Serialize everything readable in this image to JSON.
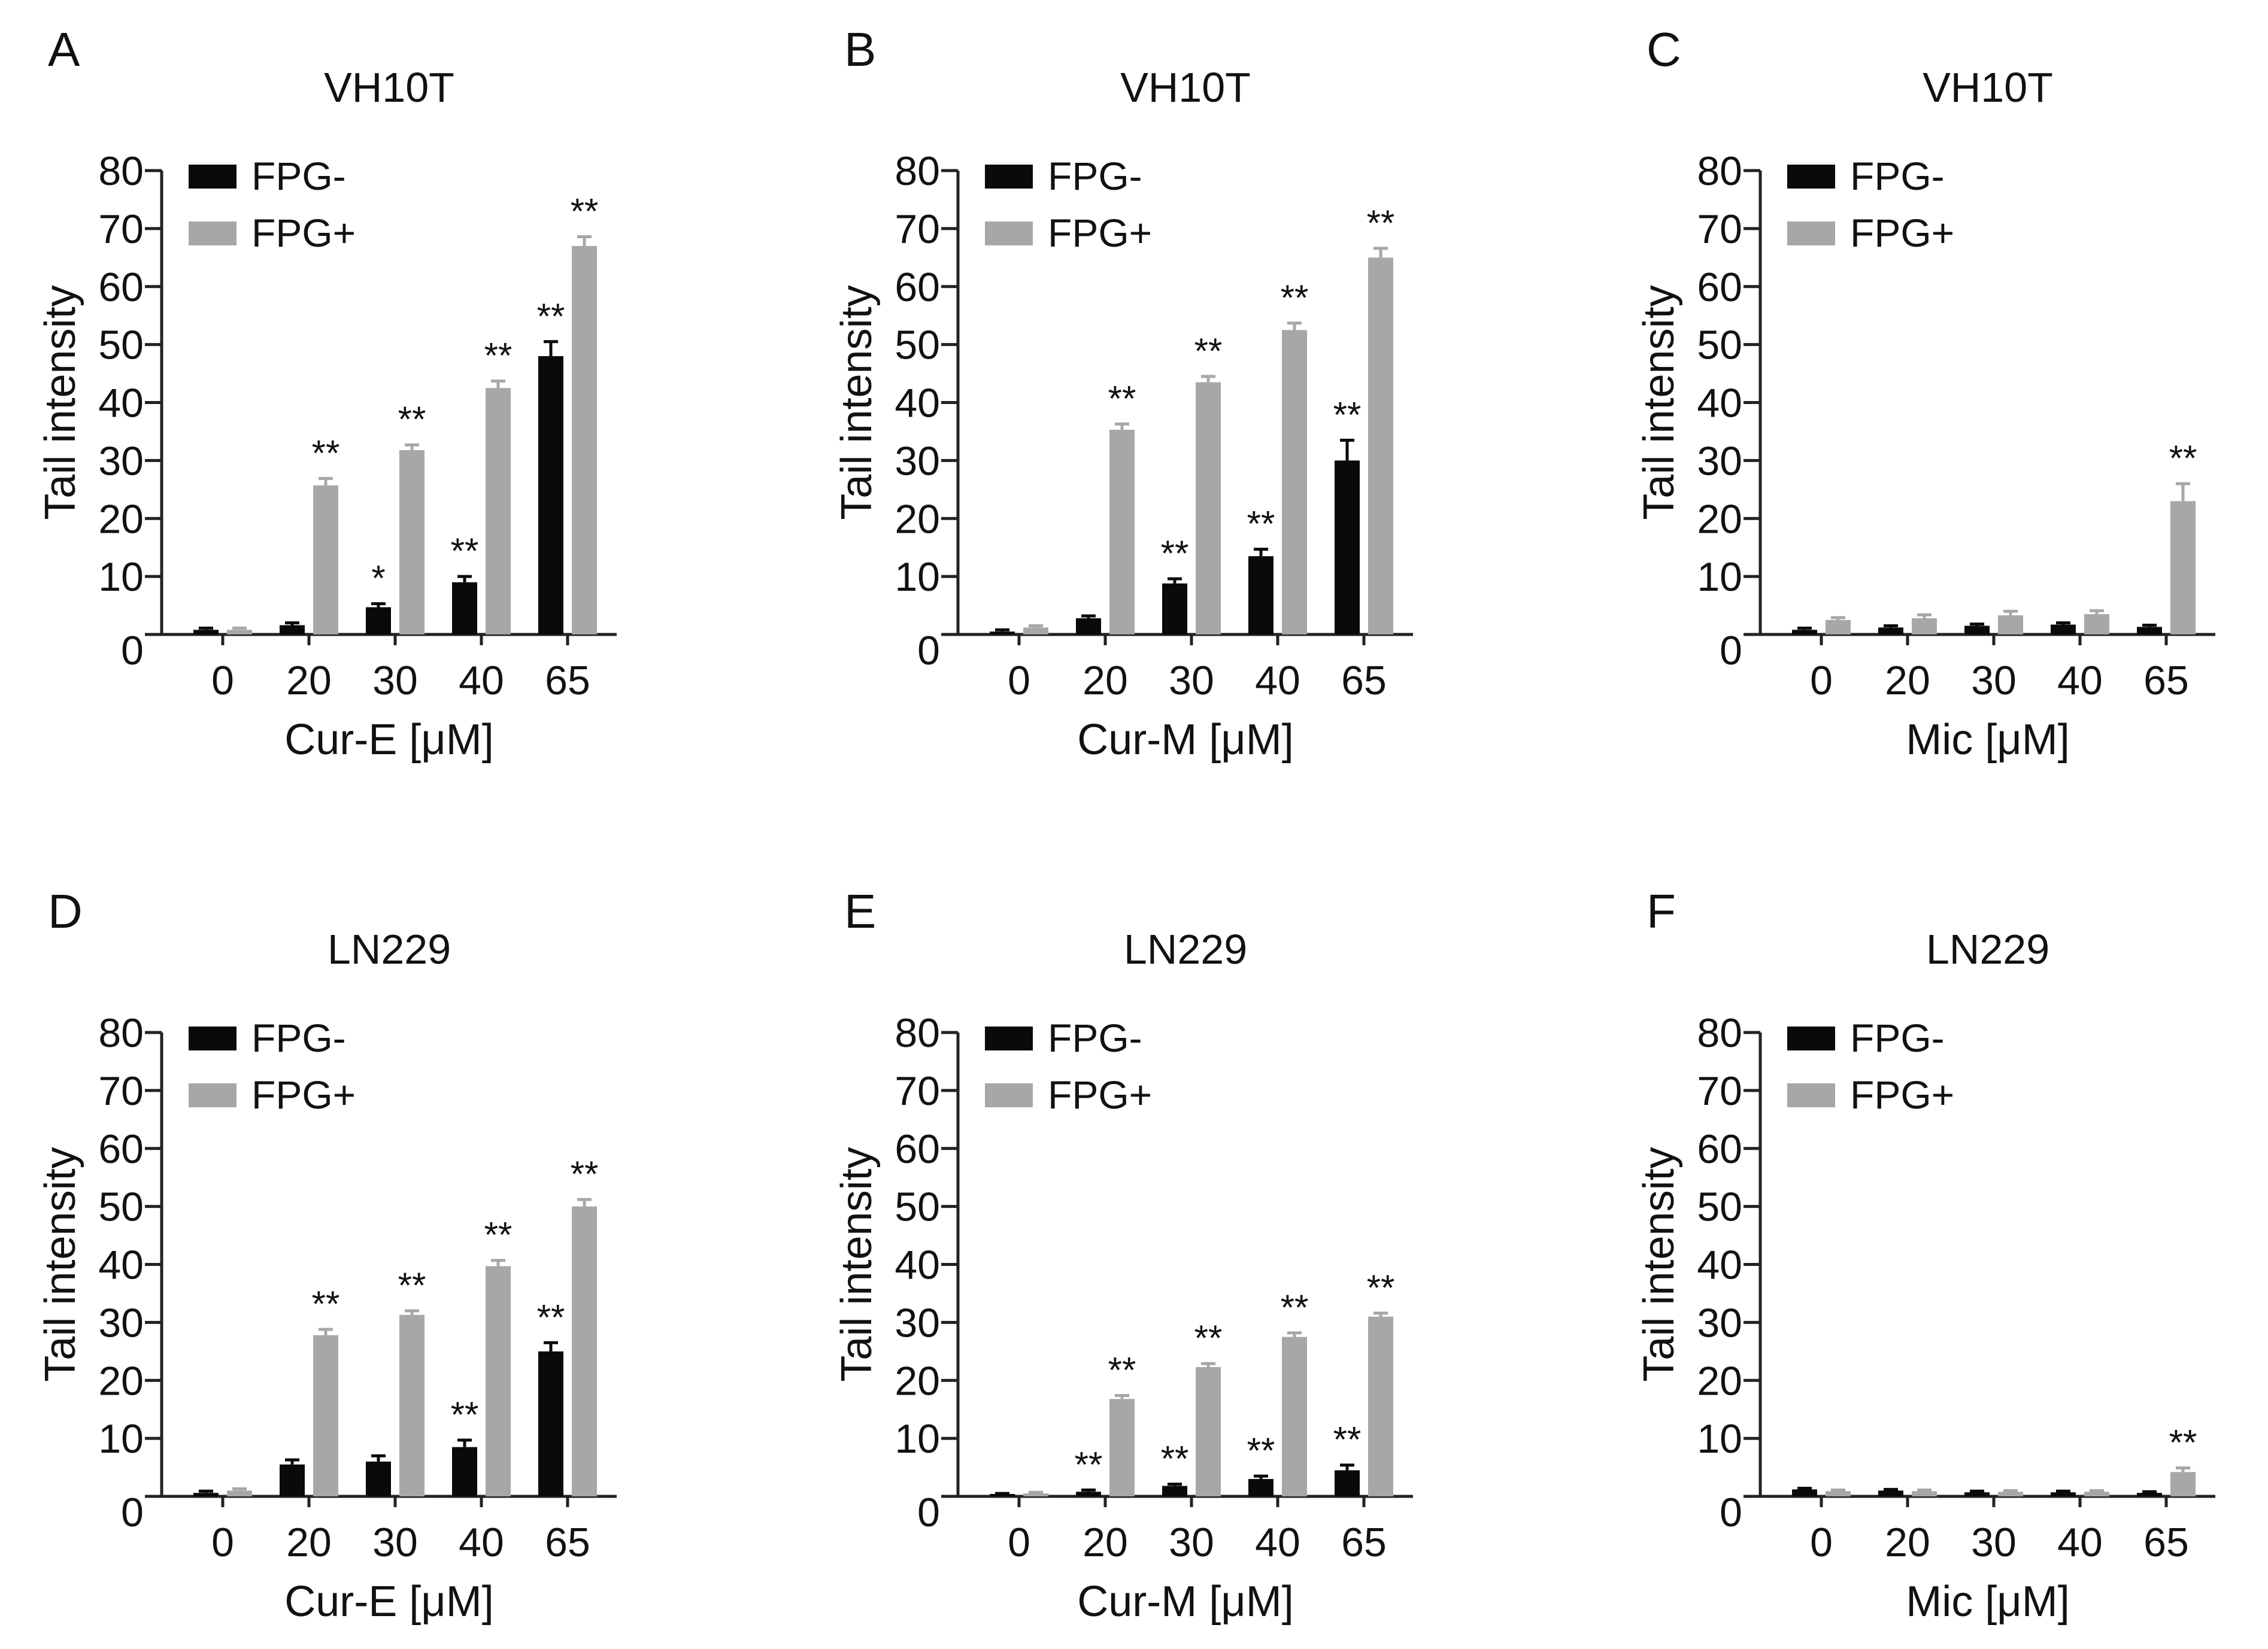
{
  "figure": {
    "colors": {
      "fpg_minus": "#0a0a0a",
      "fpg_plus": "#a7a7a7",
      "axis": "#222222"
    }
  },
  "chart_data": [
    {
      "panel": "A",
      "title": "VH10T",
      "type": "bar",
      "xlabel": "Cur-E [μM]",
      "ylabel": "Tail  intensity",
      "categories": [
        "0",
        "20",
        "30",
        "40",
        "65"
      ],
      "yticks": [
        "0",
        "10",
        "20",
        "30",
        "40",
        "50",
        "60",
        "70",
        "80"
      ],
      "ylim": [
        0,
        80
      ],
      "legend": [
        "FPG-",
        "FPG+"
      ],
      "series": [
        {
          "name": "FPG-",
          "values": [
            0.8,
            1.6,
            4.7,
            9.0,
            48.0
          ],
          "errors": [
            0.3,
            0.4,
            0.6,
            1.0,
            2.5
          ],
          "sig": [
            "",
            "",
            "*",
            "**",
            "**"
          ]
        },
        {
          "name": "FPG+",
          "values": [
            0.8,
            25.7,
            31.8,
            42.5,
            67.0
          ],
          "errors": [
            0.3,
            1.2,
            0.9,
            1.2,
            1.6
          ],
          "sig": [
            "",
            "**",
            "**",
            "**",
            "**"
          ]
        }
      ]
    },
    {
      "panel": "B",
      "title": "VH10T",
      "type": "bar",
      "xlabel": "Cur-M [μM]",
      "ylabel": "Tail  intensity",
      "categories": [
        "0",
        "20",
        "30",
        "40",
        "65"
      ],
      "yticks": [
        "0",
        "10",
        "20",
        "30",
        "40",
        "50",
        "60",
        "70",
        "80"
      ],
      "ylim": [
        0,
        80
      ],
      "legend": [
        "FPG-",
        "FPG+"
      ],
      "series": [
        {
          "name": "FPG-",
          "values": [
            0.5,
            2.8,
            8.8,
            13.5,
            30.0
          ],
          "errors": [
            0.3,
            0.4,
            0.8,
            1.2,
            3.5
          ],
          "sig": [
            "",
            "",
            "**",
            "**",
            "**"
          ]
        },
        {
          "name": "FPG+",
          "values": [
            1.2,
            35.3,
            43.5,
            52.5,
            65.0
          ],
          "errors": [
            0.3,
            1.0,
            1.0,
            1.2,
            1.6
          ],
          "sig": [
            "",
            "**",
            "**",
            "**",
            "**"
          ]
        }
      ]
    },
    {
      "panel": "C",
      "title": "VH10T",
      "type": "bar",
      "xlabel": "Mic [μM]",
      "ylabel": "Tail  intensity",
      "categories": [
        "0",
        "20",
        "30",
        "40",
        "65"
      ],
      "yticks": [
        "0",
        "10",
        "20",
        "30",
        "40",
        "50",
        "60",
        "70",
        "80"
      ],
      "ylim": [
        0,
        80
      ],
      "legend": [
        "FPG-",
        "FPG+"
      ],
      "series": [
        {
          "name": "FPG-",
          "values": [
            0.8,
            1.2,
            1.5,
            1.7,
            1.3
          ],
          "errors": [
            0.3,
            0.3,
            0.3,
            0.3,
            0.3
          ],
          "sig": [
            "",
            "",
            "",
            "",
            ""
          ]
        },
        {
          "name": "FPG+",
          "values": [
            2.5,
            2.8,
            3.3,
            3.5,
            23.0
          ],
          "errors": [
            0.4,
            0.6,
            0.7,
            0.6,
            3.0
          ],
          "sig": [
            "",
            "",
            "",
            "",
            "**"
          ]
        }
      ]
    },
    {
      "panel": "D",
      "title": "LN229",
      "type": "bar",
      "xlabel": "Cur-E [μM]",
      "ylabel": "Tail  intensity",
      "categories": [
        "0",
        "20",
        "30",
        "40",
        "65"
      ],
      "yticks": [
        "0",
        "10",
        "20",
        "30",
        "40",
        "50",
        "60",
        "70",
        "80"
      ],
      "ylim": [
        0,
        80
      ],
      "legend": [
        "FPG-",
        "FPG+"
      ],
      "series": [
        {
          "name": "FPG-",
          "values": [
            0.6,
            5.5,
            6.0,
            8.5,
            25.0
          ],
          "errors": [
            0.3,
            0.8,
            1.0,
            1.2,
            1.5
          ],
          "sig": [
            "",
            "",
            "",
            "**",
            "**"
          ]
        },
        {
          "name": "FPG+",
          "values": [
            1.0,
            27.8,
            31.3,
            39.7,
            50.0
          ],
          "errors": [
            0.3,
            1.0,
            0.7,
            1.0,
            1.2
          ],
          "sig": [
            "",
            "**",
            "**",
            "**",
            "**"
          ]
        }
      ]
    },
    {
      "panel": "E",
      "title": "LN229",
      "type": "bar",
      "xlabel": "Cur-M [μM]",
      "ylabel": "Tail  intensity",
      "categories": [
        "0",
        "20",
        "30",
        "40",
        "65"
      ],
      "yticks": [
        "0",
        "10",
        "20",
        "30",
        "40",
        "50",
        "60",
        "70",
        "80"
      ],
      "ylim": [
        0,
        80
      ],
      "legend": [
        "FPG-",
        "FPG+"
      ],
      "series": [
        {
          "name": "FPG-",
          "values": [
            0.3,
            0.8,
            1.8,
            3.0,
            4.5
          ],
          "errors": [
            0.2,
            0.3,
            0.3,
            0.5,
            0.9
          ],
          "sig": [
            "",
            "**",
            "**",
            "**",
            "**"
          ]
        },
        {
          "name": "FPG+",
          "values": [
            0.5,
            16.8,
            22.3,
            27.5,
            31.0
          ],
          "errors": [
            0.2,
            0.6,
            0.6,
            0.7,
            0.6
          ],
          "sig": [
            "",
            "**",
            "**",
            "**",
            "**"
          ]
        }
      ]
    },
    {
      "panel": "F",
      "title": "LN229",
      "type": "bar",
      "xlabel": "Mic [μM]",
      "ylabel": "Tail  intensity",
      "categories": [
        "0",
        "20",
        "30",
        "40",
        "65"
      ],
      "yticks": [
        "0",
        "10",
        "20",
        "30",
        "40",
        "50",
        "60",
        "70",
        "80"
      ],
      "ylim": [
        0,
        80
      ],
      "legend": [
        "FPG-",
        "FPG+"
      ],
      "series": [
        {
          "name": "FPG-",
          "values": [
            1.2,
            1.0,
            0.7,
            0.7,
            0.6
          ],
          "errors": [
            0.2,
            0.2,
            0.2,
            0.2,
            0.2
          ],
          "sig": [
            "",
            "",
            "",
            "",
            ""
          ]
        },
        {
          "name": "FPG+",
          "values": [
            0.9,
            0.9,
            0.8,
            0.8,
            4.2
          ],
          "errors": [
            0.2,
            0.2,
            0.2,
            0.2,
            0.7
          ],
          "sig": [
            "",
            "",
            "",
            "",
            "**"
          ]
        }
      ]
    }
  ]
}
